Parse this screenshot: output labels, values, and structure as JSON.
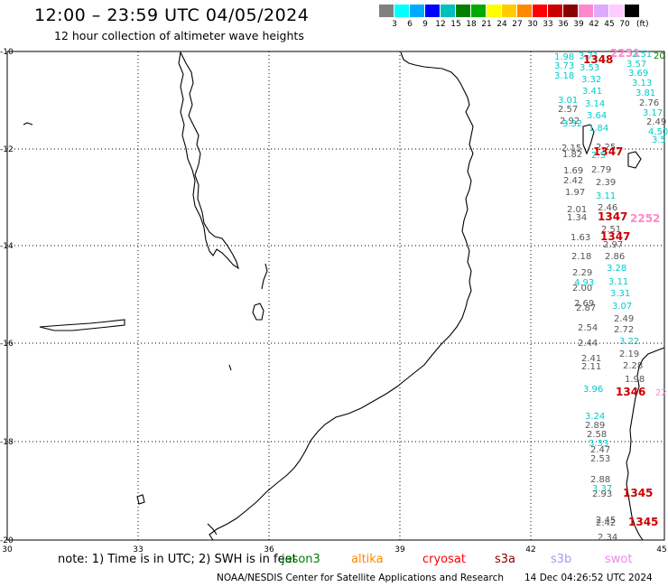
{
  "header": {
    "title": "12:00 – 23:59 UTC 04/05/2024",
    "subtitle": "12 hour collection of altimeter wave heights"
  },
  "color_scale": {
    "unit": "(ft)",
    "ticks": [
      "3",
      "6",
      "9",
      "12",
      "15",
      "18",
      "21",
      "24",
      "27",
      "30",
      "33",
      "36",
      "39",
      "42",
      "45",
      "70"
    ],
    "colors": [
      "#808080",
      "#00ffff",
      "#00aaff",
      "#0000ff",
      "#00bfbf",
      "#008000",
      "#00aa00",
      "#ffff00",
      "#ffcc00",
      "#ff8800",
      "#ff0000",
      "#cc0000",
      "#880000",
      "#ff88cc",
      "#ddaaff",
      "#ffccff",
      "#000000"
    ]
  },
  "map": {
    "lon_labels": [
      "30",
      "33",
      "36",
      "39",
      "42",
      "45"
    ],
    "lat_labels": [
      "-10",
      "-12",
      "-14",
      "-16",
      "-18",
      "-20"
    ]
  },
  "observations": [
    {
      "t": "1.98",
      "c": "#00cccc"
    },
    {
      "t": "3.71",
      "c": "#00cccc"
    },
    {
      "t": "1348",
      "c": "#cc0000"
    },
    {
      "t": "2251",
      "c": "#ff88cc"
    },
    {
      "t": "2.51",
      "c": "#00cccc"
    },
    {
      "t": "20",
      "c": "#008000"
    },
    {
      "t": "3.73",
      "c": "#00cccc"
    },
    {
      "t": "3.53",
      "c": "#00cccc"
    },
    {
      "t": "3.57",
      "c": "#00cccc"
    },
    {
      "t": "3.18",
      "c": "#00cccc"
    },
    {
      "t": "3.32",
      "c": "#00cccc"
    },
    {
      "t": "3.69",
      "c": "#00cccc"
    },
    {
      "t": "3.13",
      "c": "#00cccc"
    },
    {
      "t": "3.41",
      "c": "#00cccc"
    },
    {
      "t": "3.81",
      "c": "#00cccc"
    },
    {
      "t": "3.01",
      "c": "#00cccc"
    },
    {
      "t": "3.14",
      "c": "#00cccc"
    },
    {
      "t": "2.76",
      "c": "#555555"
    },
    {
      "t": "2.57",
      "c": "#555555"
    },
    {
      "t": "3.64",
      "c": "#00cccc"
    },
    {
      "t": "3.17",
      "c": "#00cccc"
    },
    {
      "t": "2.92",
      "c": "#555555"
    },
    {
      "t": "3.32",
      "c": "#00cccc"
    },
    {
      "t": "1.84",
      "c": "#00cccc"
    },
    {
      "t": "2.49",
      "c": "#555555"
    },
    {
      "t": "4.50",
      "c": "#00cccc"
    },
    {
      "t": "3.5",
      "c": "#00cccc"
    },
    {
      "t": "2.15",
      "c": "#555555"
    },
    {
      "t": "1.82",
      "c": "#555555"
    },
    {
      "t": "2.25",
      "c": "#555555"
    },
    {
      "t": "1347",
      "c": "#cc0000"
    },
    {
      "t": "2.5",
      "c": "#00cccc"
    },
    {
      "t": "1.69",
      "c": "#555555"
    },
    {
      "t": "2.79",
      "c": "#555555"
    },
    {
      "t": "2.42",
      "c": "#555555"
    },
    {
      "t": "2.39",
      "c": "#555555"
    },
    {
      "t": "1.97",
      "c": "#555555"
    },
    {
      "t": "3.11",
      "c": "#00cccc"
    },
    {
      "t": "2.01",
      "c": "#555555"
    },
    {
      "t": "2.46",
      "c": "#555555"
    },
    {
      "t": "1.34",
      "c": "#555555"
    },
    {
      "t": "1347",
      "c": "#cc0000"
    },
    {
      "t": "2252",
      "c": "#ff88cc"
    },
    {
      "t": "2.51",
      "c": "#555555"
    },
    {
      "t": "1.63",
      "c": "#555555"
    },
    {
      "t": "1347",
      "c": "#cc0000"
    },
    {
      "t": "2.97",
      "c": "#555555"
    },
    {
      "t": "2.18",
      "c": "#555555"
    },
    {
      "t": "2.86",
      "c": "#555555"
    },
    {
      "t": "3.28",
      "c": "#00cccc"
    },
    {
      "t": "2.29",
      "c": "#555555"
    },
    {
      "t": "3.11",
      "c": "#00cccc"
    },
    {
      "t": "2.00",
      "c": "#555555"
    },
    {
      "t": "4.93",
      "c": "#00cccc"
    },
    {
      "t": "3.31",
      "c": "#00cccc"
    },
    {
      "t": "2.69",
      "c": "#555555"
    },
    {
      "t": "3.07",
      "c": "#00cccc"
    },
    {
      "t": "2.87",
      "c": "#555555"
    },
    {
      "t": "2.49",
      "c": "#555555"
    },
    {
      "t": "2.54",
      "c": "#555555"
    },
    {
      "t": "2.72",
      "c": "#555555"
    },
    {
      "t": "2.44",
      "c": "#555555"
    },
    {
      "t": "3.22",
      "c": "#00cccc"
    },
    {
      "t": "2.19",
      "c": "#555555"
    },
    {
      "t": "2.41",
      "c": "#555555"
    },
    {
      "t": "2.11",
      "c": "#555555"
    },
    {
      "t": "2.28",
      "c": "#555555"
    },
    {
      "t": "1.98",
      "c": "#555555"
    },
    {
      "t": "3.96",
      "c": "#00cccc"
    },
    {
      "t": "1346",
      "c": "#cc0000"
    },
    {
      "t": "22",
      "c": "#ff88cc"
    },
    {
      "t": "3.24",
      "c": "#00cccc"
    },
    {
      "t": "2.89",
      "c": "#555555"
    },
    {
      "t": "2.58",
      "c": "#555555"
    },
    {
      "t": "3.33",
      "c": "#00cccc"
    },
    {
      "t": "2.47",
      "c": "#555555"
    },
    {
      "t": "2.53",
      "c": "#555555"
    },
    {
      "t": "2.88",
      "c": "#555555"
    },
    {
      "t": "3.37",
      "c": "#00cccc"
    },
    {
      "t": "2.93",
      "c": "#555555"
    },
    {
      "t": "1345",
      "c": "#cc0000"
    },
    {
      "t": "2.45",
      "c": "#555555"
    },
    {
      "t": "2.42",
      "c": "#555555"
    },
    {
      "t": "1345",
      "c": "#cc0000"
    },
    {
      "t": "2.34",
      "c": "#555555"
    }
  ],
  "footer": {
    "note": "note: 1) Time is in UTC; 2) SWH is in feet",
    "satellites": [
      {
        "name": "jason3",
        "color": "#008000"
      },
      {
        "name": "altika",
        "color": "#ff8800"
      },
      {
        "name": "cryosat",
        "color": "#ff0000"
      },
      {
        "name": "s3a",
        "color": "#880000"
      },
      {
        "name": "s3b",
        "color": "#aa99ee"
      },
      {
        "name": "swot",
        "color": "#ee88ee"
      }
    ],
    "credit": "NOAA/NESDIS Center for Satellite Applications and Research",
    "timestamp": "14 Dec 04:26:52 UTC 2024"
  }
}
